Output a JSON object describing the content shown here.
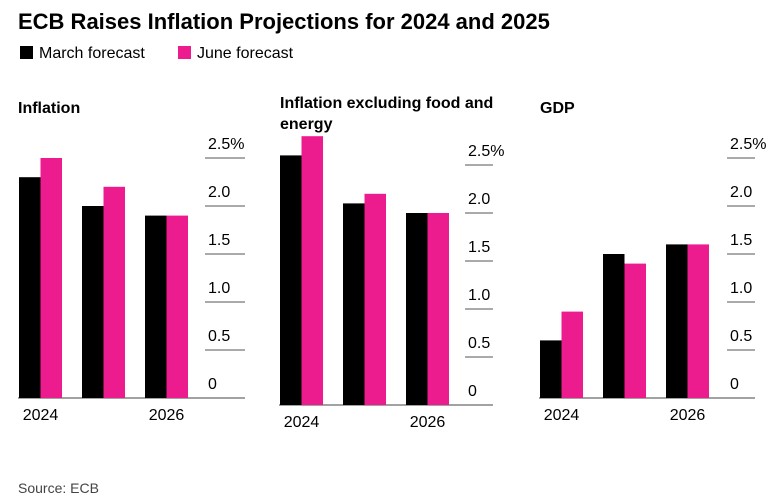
{
  "title": "ECB Raises Inflation Projections for 2024 and 2025",
  "source": "Source: ECB",
  "chart_data": [
    {
      "type": "bar",
      "title": "Inflation",
      "categories": [
        "2024",
        null,
        "2026"
      ],
      "series": [
        {
          "name": "March forecast",
          "color": "#000000",
          "values": [
            2.3,
            2.0,
            1.9
          ]
        },
        {
          "name": "June forecast",
          "color": "#ec1c8f",
          "values": [
            2.5,
            2.2,
            1.9
          ]
        }
      ],
      "ylim": [
        0,
        2.5
      ],
      "yticks": [
        0,
        0.5,
        {
          "value": 1,
          "label": "1.0"
        },
        1.5,
        {
          "value": 2,
          "label": "2.0"
        },
        {
          "value": 2.5,
          "label": "2.5%"
        }
      ]
    },
    {
      "type": "bar",
      "title": "Inflation excluding food and energy",
      "categories": [
        "2024",
        null,
        "2026"
      ],
      "series": [
        {
          "name": "March forecast",
          "color": "#000000",
          "values": [
            2.6,
            2.1,
            2.0
          ]
        },
        {
          "name": "June forecast",
          "color": "#ec1c8f",
          "values": [
            2.8,
            2.2,
            2.0
          ]
        }
      ],
      "ylim": [
        0,
        2.8
      ],
      "yticks": [
        0,
        0.5,
        {
          "value": 1,
          "label": "1.0"
        },
        1.5,
        {
          "value": 2,
          "label": "2.0"
        },
        {
          "value": 2.5,
          "label": "2.5%"
        }
      ]
    },
    {
      "type": "bar",
      "title": "GDP",
      "categories": [
        "2024",
        null,
        "2026"
      ],
      "series": [
        {
          "name": "March forecast",
          "color": "#000000",
          "values": [
            0.6,
            1.5,
            1.6
          ]
        },
        {
          "name": "June forecast",
          "color": "#ec1c8f",
          "values": [
            0.9,
            1.4,
            1.6
          ]
        }
      ],
      "ylim": [
        0,
        2.5
      ],
      "yticks": [
        0,
        0.5,
        {
          "value": 1,
          "label": "1.0"
        },
        1.5,
        {
          "value": 2,
          "label": "2.0"
        },
        {
          "value": 2.5,
          "label": "2.5%"
        }
      ]
    }
  ]
}
